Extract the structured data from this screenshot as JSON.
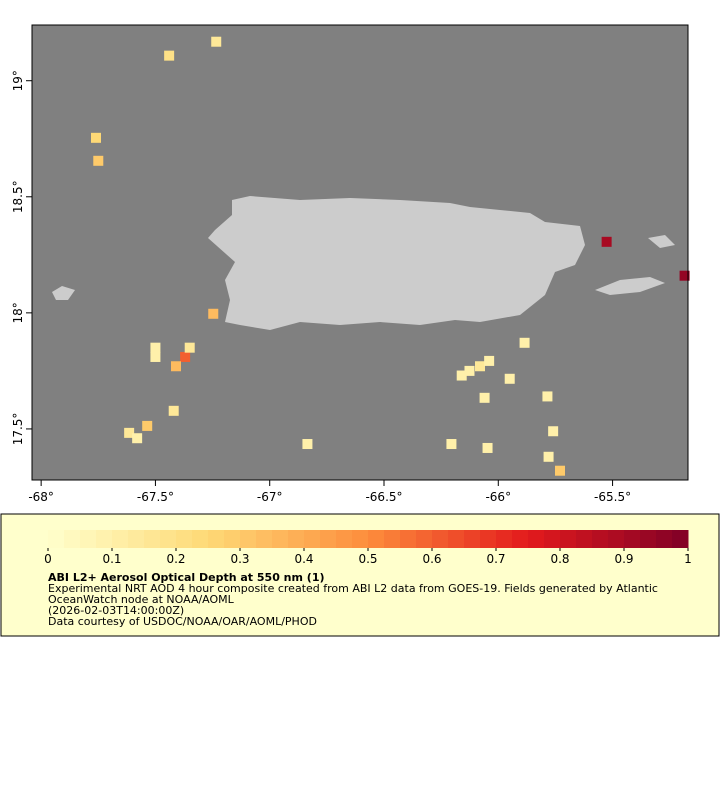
{
  "map": {
    "xlim": [
      -68.04,
      -65.17
    ],
    "ylim": [
      17.28,
      19.24
    ],
    "xticks": [
      {
        "value": -68,
        "label": "-68°"
      },
      {
        "value": -67.5,
        "label": "-67.5°"
      },
      {
        "value": -67,
        "label": "-67°"
      },
      {
        "value": -66.5,
        "label": "-66.5°"
      },
      {
        "value": -66,
        "label": "-66°"
      },
      {
        "value": -65.5,
        "label": "-65.5°"
      }
    ],
    "yticks": [
      {
        "value": 17.5,
        "label": "17.5°"
      },
      {
        "value": 18,
        "label": "18°"
      },
      {
        "value": 18.5,
        "label": "18.5°"
      },
      {
        "value": 19,
        "label": "19°"
      }
    ],
    "ocean_color": "#808080",
    "land_color": "#cccccc",
    "colormap": [
      "#ffffcc",
      "#fed976",
      "#fd8d3c",
      "#e31a1c",
      "#800026"
    ],
    "cells": [
      {
        "lon": -67.234,
        "lat": 19.168,
        "value": 0.15
      },
      {
        "lon": -67.44,
        "lat": 19.108,
        "value": 0.2
      },
      {
        "lon": -67.76,
        "lat": 18.754,
        "value": 0.25
      },
      {
        "lon": -67.75,
        "lat": 18.655,
        "value": 0.3
      },
      {
        "lon": -67.247,
        "lat": 17.996,
        "value": 0.35
      },
      {
        "lon": -67.5,
        "lat": 17.85,
        "value": 0.1
      },
      {
        "lon": -67.5,
        "lat": 17.81,
        "value": 0.1
      },
      {
        "lon": -67.37,
        "lat": 17.81,
        "value": 0.6
      },
      {
        "lon": -67.35,
        "lat": 17.85,
        "value": 0.15
      },
      {
        "lon": -67.41,
        "lat": 17.77,
        "value": 0.35
      },
      {
        "lon": -67.42,
        "lat": 17.578,
        "value": 0.15
      },
      {
        "lon": -67.536,
        "lat": 17.513,
        "value": 0.3
      },
      {
        "lon": -67.615,
        "lat": 17.483,
        "value": 0.15
      },
      {
        "lon": -67.58,
        "lat": 17.46,
        "value": 0.1
      },
      {
        "lon": -66.835,
        "lat": 17.435,
        "value": 0.1
      },
      {
        "lon": -66.126,
        "lat": 17.75,
        "value": 0.1
      },
      {
        "lon": -66.08,
        "lat": 17.77,
        "value": 0.15
      },
      {
        "lon": -66.04,
        "lat": 17.793,
        "value": 0.1
      },
      {
        "lon": -66.16,
        "lat": 17.73,
        "value": 0.1
      },
      {
        "lon": -65.95,
        "lat": 17.716,
        "value": 0.1
      },
      {
        "lon": -66.06,
        "lat": 17.634,
        "value": 0.1
      },
      {
        "lon": -65.885,
        "lat": 17.871,
        "value": 0.1
      },
      {
        "lon": -65.785,
        "lat": 17.64,
        "value": 0.1
      },
      {
        "lon": -65.76,
        "lat": 17.49,
        "value": 0.1
      },
      {
        "lon": -65.78,
        "lat": 17.38,
        "value": 0.1
      },
      {
        "lon": -65.73,
        "lat": 17.32,
        "value": 0.3
      },
      {
        "lon": -66.205,
        "lat": 17.435,
        "value": 0.1
      },
      {
        "lon": -66.047,
        "lat": 17.418,
        "value": 0.1
      },
      {
        "lon": -65.526,
        "lat": 18.306,
        "value": 0.9
      },
      {
        "lon": -65.185,
        "lat": 18.16,
        "value": 0.95
      }
    ]
  },
  "colorbar": {
    "lim": [
      0,
      1
    ],
    "ticks": [
      0,
      0.1,
      0.2,
      0.3,
      0.4,
      0.5,
      0.6,
      0.7,
      0.8,
      0.9,
      1
    ]
  },
  "caption": {
    "title": "ABI L2+ Aerosol Optical Depth at 550 nm (1)",
    "lines": [
      "Experimental NRT AOD 4 hour composite created from ABI L2 data from GOES-19. Fields generated by Atlantic",
      "OceanWatch node at NOAA/AOML",
      "(2026-02-03T14:00:00Z)",
      "Data courtesy of USDOC/NOAA/OAR/AOML/PHOD"
    ]
  }
}
